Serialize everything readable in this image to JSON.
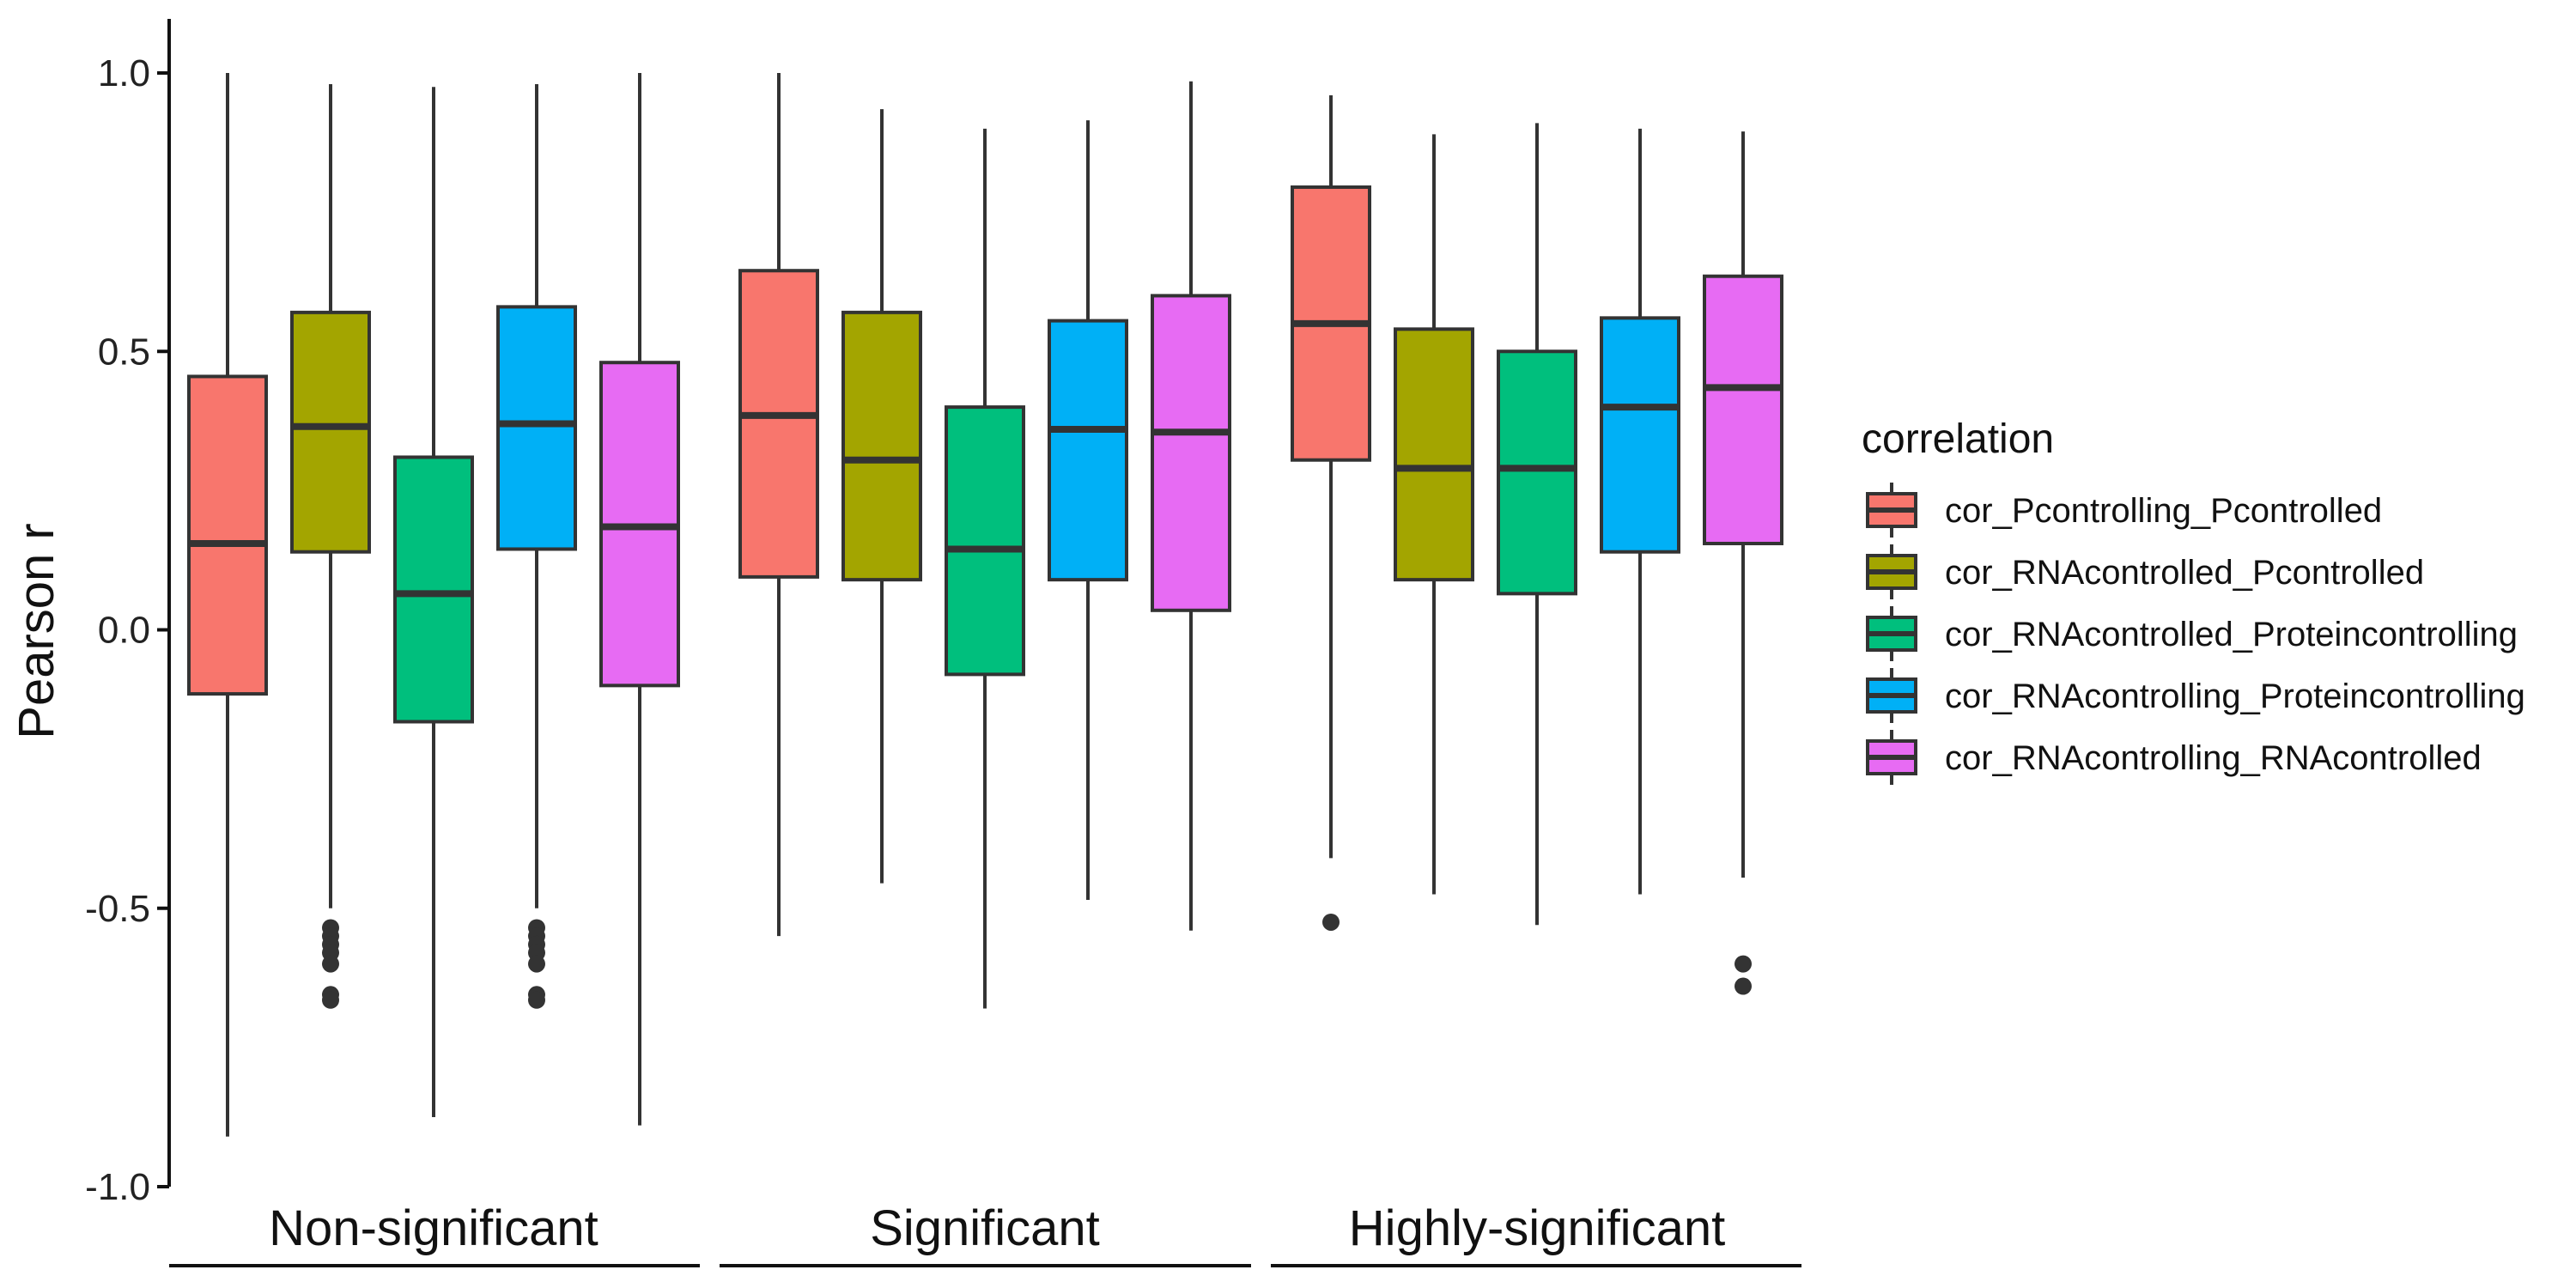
{
  "chart_data": {
    "type": "boxplot",
    "title": "",
    "xlabel": "",
    "ylabel": "Pearson r",
    "ylim": [
      -1.0,
      1.0
    ],
    "yticks": [
      -1.0,
      -0.5,
      0.0,
      0.5,
      1.0
    ],
    "ytick_labels": [
      "-1.0",
      "-0.5",
      "0.0",
      "0.5",
      "1.0"
    ],
    "grid": false,
    "categories": [
      "Non-significant",
      "Significant",
      "Highly-significant"
    ],
    "legend": {
      "title": "correlation",
      "position": "right"
    },
    "series": [
      {
        "name": "cor_Pcontrolling_Pcontrolled",
        "color": "#F8766D",
        "boxes": [
          {
            "lower_whisker": -0.91,
            "q1": -0.115,
            "median": 0.155,
            "q3": 0.455,
            "upper_whisker": 1.0,
            "outliers": []
          },
          {
            "lower_whisker": -0.55,
            "q1": 0.095,
            "median": 0.385,
            "q3": 0.645,
            "upper_whisker": 1.0,
            "outliers": []
          },
          {
            "lower_whisker": -0.41,
            "q1": 0.305,
            "median": 0.55,
            "q3": 0.795,
            "upper_whisker": 0.96,
            "outliers": [
              -0.525
            ]
          }
        ]
      },
      {
        "name": "cor_RNAcontrolled_Pcontrolled",
        "color": "#A3A500",
        "boxes": [
          {
            "lower_whisker": -0.5,
            "q1": 0.14,
            "median": 0.365,
            "q3": 0.57,
            "upper_whisker": 0.98,
            "outliers": [
              -0.535,
              -0.55,
              -0.565,
              -0.58,
              -0.6,
              -0.655,
              -0.665
            ]
          },
          {
            "lower_whisker": -0.455,
            "q1": 0.09,
            "median": 0.305,
            "q3": 0.57,
            "upper_whisker": 0.935,
            "outliers": []
          },
          {
            "lower_whisker": -0.475,
            "q1": 0.09,
            "median": 0.29,
            "q3": 0.54,
            "upper_whisker": 0.89,
            "outliers": []
          }
        ]
      },
      {
        "name": "cor_RNAcontrolled_Proteincontrolling",
        "color": "#00BF7D",
        "boxes": [
          {
            "lower_whisker": -0.875,
            "q1": -0.165,
            "median": 0.065,
            "q3": 0.31,
            "upper_whisker": 0.975,
            "outliers": []
          },
          {
            "lower_whisker": -0.68,
            "q1": -0.08,
            "median": 0.145,
            "q3": 0.4,
            "upper_whisker": 0.9,
            "outliers": []
          },
          {
            "lower_whisker": -0.53,
            "q1": 0.065,
            "median": 0.29,
            "q3": 0.5,
            "upper_whisker": 0.91,
            "outliers": []
          }
        ]
      },
      {
        "name": "cor_RNAcontrolling_Proteincontrolling",
        "color": "#00B0F6",
        "boxes": [
          {
            "lower_whisker": -0.5,
            "q1": 0.145,
            "median": 0.37,
            "q3": 0.58,
            "upper_whisker": 0.98,
            "outliers": [
              -0.535,
              -0.55,
              -0.565,
              -0.58,
              -0.6,
              -0.655,
              -0.665
            ]
          },
          {
            "lower_whisker": -0.485,
            "q1": 0.09,
            "median": 0.36,
            "q3": 0.555,
            "upper_whisker": 0.915,
            "outliers": []
          },
          {
            "lower_whisker": -0.475,
            "q1": 0.14,
            "median": 0.4,
            "q3": 0.56,
            "upper_whisker": 0.9,
            "outliers": []
          }
        ]
      },
      {
        "name": "cor_RNAcontrolling_RNAcontrolled",
        "color": "#E76BF3",
        "boxes": [
          {
            "lower_whisker": -0.89,
            "q1": -0.1,
            "median": 0.185,
            "q3": 0.48,
            "upper_whisker": 1.0,
            "outliers": []
          },
          {
            "lower_whisker": -0.54,
            "q1": 0.035,
            "median": 0.355,
            "q3": 0.6,
            "upper_whisker": 0.985,
            "outliers": []
          },
          {
            "lower_whisker": -0.445,
            "q1": 0.155,
            "median": 0.435,
            "q3": 0.635,
            "upper_whisker": 0.895,
            "outliers": [
              -0.6,
              -0.64
            ]
          }
        ]
      }
    ]
  }
}
